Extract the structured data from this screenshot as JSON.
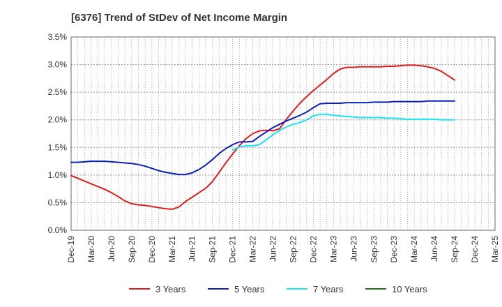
{
  "chart_data": {
    "type": "line",
    "title": "[6376]  Trend of StDev of Net Income Margin",
    "xlabel": "",
    "ylabel": "",
    "ylim": [
      0,
      3.5
    ],
    "y_ticks": [
      "0.0%",
      "0.5%",
      "1.0%",
      "1.5%",
      "2.0%",
      "2.5%",
      "3.0%",
      "3.5%"
    ],
    "x_ticks": [
      "Dec-19",
      "Mar-20",
      "Jun-20",
      "Sep-20",
      "Dec-20",
      "Mar-21",
      "Jun-21",
      "Sep-21",
      "Dec-21",
      "Mar-22",
      "Jun-22",
      "Sep-22",
      "Dec-22",
      "Mar-23",
      "Jun-23",
      "Sep-23",
      "Dec-23",
      "Mar-24",
      "Jun-24",
      "Sep-24",
      "Dec-24",
      "Mar-25"
    ],
    "grid": true,
    "legend_position": "bottom",
    "series": [
      {
        "name": "3 Years",
        "color": "#e31a1c",
        "points": [
          [
            "Dec-19",
            0.99
          ],
          [
            "Jan-20",
            0.94
          ],
          [
            "Feb-20",
            0.89
          ],
          [
            "Mar-20",
            0.84
          ],
          [
            "Apr-20",
            0.79
          ],
          [
            "May-20",
            0.74
          ],
          [
            "Jun-20",
            0.68
          ],
          [
            "Jul-20",
            0.61
          ],
          [
            "Aug-20",
            0.53
          ],
          [
            "Sep-20",
            0.48
          ],
          [
            "Oct-20",
            0.46
          ],
          [
            "Nov-20",
            0.45
          ],
          [
            "Dec-20",
            0.43
          ],
          [
            "Jan-21",
            0.41
          ],
          [
            "Feb-21",
            0.39
          ],
          [
            "Mar-21",
            0.38
          ],
          [
            "Apr-21",
            0.42
          ],
          [
            "May-21",
            0.52
          ],
          [
            "Jun-21",
            0.6
          ],
          [
            "Jul-21",
            0.68
          ],
          [
            "Aug-21",
            0.76
          ],
          [
            "Sep-21",
            0.88
          ],
          [
            "Oct-21",
            1.05
          ],
          [
            "Nov-21",
            1.22
          ],
          [
            "Dec-21",
            1.38
          ],
          [
            "Jan-22",
            1.53
          ],
          [
            "Feb-22",
            1.66
          ],
          [
            "Mar-22",
            1.75
          ],
          [
            "Apr-22",
            1.8
          ],
          [
            "May-22",
            1.81
          ],
          [
            "Jun-22",
            1.8
          ],
          [
            "Jul-22",
            1.84
          ],
          [
            "Aug-22",
            2.01
          ],
          [
            "Sep-22",
            2.16
          ],
          [
            "Oct-22",
            2.3
          ],
          [
            "Nov-22",
            2.42
          ],
          [
            "Dec-22",
            2.53
          ],
          [
            "Jan-23",
            2.63
          ],
          [
            "Feb-23",
            2.73
          ],
          [
            "Mar-23",
            2.84
          ],
          [
            "Apr-23",
            2.92
          ],
          [
            "May-23",
            2.95
          ],
          [
            "Jun-23",
            2.95
          ],
          [
            "Jul-23",
            2.96
          ],
          [
            "Aug-23",
            2.96
          ],
          [
            "Sep-23",
            2.96
          ],
          [
            "Oct-23",
            2.96
          ],
          [
            "Nov-23",
            2.97
          ],
          [
            "Dec-23",
            2.97
          ],
          [
            "Jan-24",
            2.98
          ],
          [
            "Feb-24",
            2.99
          ],
          [
            "Mar-24",
            2.99
          ],
          [
            "Apr-24",
            2.98
          ],
          [
            "May-24",
            2.96
          ],
          [
            "Jun-24",
            2.93
          ],
          [
            "Jul-24",
            2.88
          ],
          [
            "Aug-24",
            2.8
          ],
          [
            "Sep-24",
            2.72
          ]
        ]
      },
      {
        "name": "5 Years",
        "color": "#0b1fbf",
        "points": [
          [
            "Dec-19",
            1.23
          ],
          [
            "Jan-20",
            1.23
          ],
          [
            "Feb-20",
            1.24
          ],
          [
            "Mar-20",
            1.25
          ],
          [
            "Apr-20",
            1.25
          ],
          [
            "May-20",
            1.25
          ],
          [
            "Jun-20",
            1.24
          ],
          [
            "Jul-20",
            1.23
          ],
          [
            "Aug-20",
            1.22
          ],
          [
            "Sep-20",
            1.21
          ],
          [
            "Oct-20",
            1.19
          ],
          [
            "Nov-20",
            1.16
          ],
          [
            "Dec-20",
            1.12
          ],
          [
            "Jan-21",
            1.08
          ],
          [
            "Feb-21",
            1.05
          ],
          [
            "Mar-21",
            1.03
          ],
          [
            "Apr-21",
            1.01
          ],
          [
            "May-21",
            1.01
          ],
          [
            "Jun-21",
            1.04
          ],
          [
            "Jul-21",
            1.1
          ],
          [
            "Aug-21",
            1.18
          ],
          [
            "Sep-21",
            1.28
          ],
          [
            "Oct-21",
            1.39
          ],
          [
            "Nov-21",
            1.48
          ],
          [
            "Dec-21",
            1.55
          ],
          [
            "Jan-22",
            1.6
          ],
          [
            "Feb-22",
            1.6
          ],
          [
            "Mar-22",
            1.61
          ],
          [
            "Apr-22",
            1.7
          ],
          [
            "May-22",
            1.78
          ],
          [
            "Jun-22",
            1.86
          ],
          [
            "Jul-22",
            1.92
          ],
          [
            "Aug-22",
            1.98
          ],
          [
            "Sep-22",
            2.03
          ],
          [
            "Oct-22",
            2.08
          ],
          [
            "Nov-22",
            2.14
          ],
          [
            "Dec-22",
            2.22
          ],
          [
            "Jan-23",
            2.29
          ],
          [
            "Feb-23",
            2.3
          ],
          [
            "Mar-23",
            2.3
          ],
          [
            "Apr-23",
            2.3
          ],
          [
            "May-23",
            2.31
          ],
          [
            "Jun-23",
            2.31
          ],
          [
            "Jul-23",
            2.31
          ],
          [
            "Aug-23",
            2.31
          ],
          [
            "Sep-23",
            2.32
          ],
          [
            "Oct-23",
            2.32
          ],
          [
            "Nov-23",
            2.32
          ],
          [
            "Dec-23",
            2.33
          ],
          [
            "Jan-24",
            2.33
          ],
          [
            "Feb-24",
            2.33
          ],
          [
            "Mar-24",
            2.33
          ],
          [
            "Apr-24",
            2.33
          ],
          [
            "May-24",
            2.34
          ],
          [
            "Jun-24",
            2.34
          ],
          [
            "Jul-24",
            2.34
          ],
          [
            "Aug-24",
            2.34
          ],
          [
            "Sep-24",
            2.34
          ]
        ]
      },
      {
        "name": "7 Years",
        "color": "#19e6f0",
        "points": [
          [
            "Dec-21",
            1.45
          ],
          [
            "Jan-22",
            1.51
          ],
          [
            "Feb-22",
            1.53
          ],
          [
            "Mar-22",
            1.53
          ],
          [
            "Apr-22",
            1.55
          ],
          [
            "May-22",
            1.64
          ],
          [
            "Jun-22",
            1.73
          ],
          [
            "Jul-22",
            1.81
          ],
          [
            "Aug-22",
            1.87
          ],
          [
            "Sep-22",
            1.92
          ],
          [
            "Oct-22",
            1.95
          ],
          [
            "Nov-22",
            2.0
          ],
          [
            "Dec-22",
            2.07
          ],
          [
            "Jan-23",
            2.1
          ],
          [
            "Feb-23",
            2.1
          ],
          [
            "Mar-23",
            2.08
          ],
          [
            "Apr-23",
            2.07
          ],
          [
            "May-23",
            2.06
          ],
          [
            "Jun-23",
            2.05
          ],
          [
            "Jul-23",
            2.04
          ],
          [
            "Aug-23",
            2.04
          ],
          [
            "Sep-23",
            2.04
          ],
          [
            "Oct-23",
            2.04
          ],
          [
            "Nov-23",
            2.03
          ],
          [
            "Dec-23",
            2.03
          ],
          [
            "Jan-24",
            2.02
          ],
          [
            "Feb-24",
            2.01
          ],
          [
            "Mar-24",
            2.01
          ],
          [
            "Apr-24",
            2.01
          ],
          [
            "May-24",
            2.01
          ],
          [
            "Jun-24",
            2.01
          ],
          [
            "Jul-24",
            2.0
          ],
          [
            "Aug-24",
            2.0
          ],
          [
            "Sep-24",
            2.0
          ]
        ]
      },
      {
        "name": "10 Years",
        "color": "#1a7a1a",
        "points": []
      }
    ]
  }
}
